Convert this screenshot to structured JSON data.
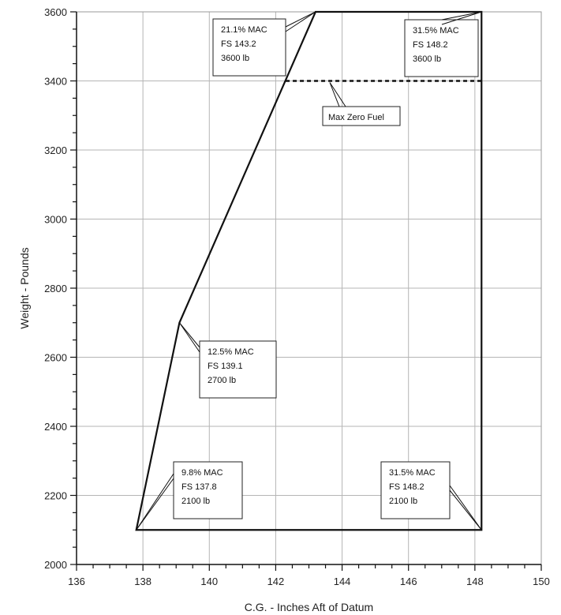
{
  "chart_data": {
    "type": "line",
    "xlabel": "C.G. - Inches Aft of Datum",
    "ylabel": "Weight - Pounds",
    "xlim": [
      136,
      150
    ],
    "ylim": [
      2000,
      3600
    ],
    "x_ticks": [
      136,
      138,
      140,
      142,
      144,
      146,
      148,
      150
    ],
    "x_tick_labels": [
      "136",
      "138",
      "140",
      "142",
      "144",
      "146",
      "148",
      "150"
    ],
    "y_ticks": [
      2000,
      2200,
      2400,
      2600,
      2800,
      3000,
      3200,
      3400,
      3600
    ],
    "y_tick_labels": [
      "2000",
      "2200",
      "2400",
      "2600",
      "2800",
      "3000",
      "3200",
      "3400",
      "3600"
    ],
    "grid": true,
    "envelope": [
      {
        "x": 137.8,
        "y": 2100
      },
      {
        "x": 139.1,
        "y": 2700
      },
      {
        "x": 143.2,
        "y": 3600
      },
      {
        "x": 148.2,
        "y": 3600
      },
      {
        "x": 148.2,
        "y": 2100
      }
    ],
    "max_zero_fuel": {
      "x_start": 142.3,
      "x_end": 148.2,
      "y": 3400,
      "label": "Max Zero Fuel"
    },
    "annotations": [
      {
        "name": "point-fwd-bottom",
        "x": 137.8,
        "y": 2100,
        "lines": [
          "9.8% MAC",
          "FS 137.8",
          "2100 lb"
        ]
      },
      {
        "name": "point-fwd-mid",
        "x": 139.1,
        "y": 2700,
        "lines": [
          "12.5% MAC",
          "FS 139.1",
          "2700 lb"
        ]
      },
      {
        "name": "point-fwd-top",
        "x": 143.2,
        "y": 3600,
        "lines": [
          "21.1% MAC",
          "FS 143.2",
          "3600 lb"
        ]
      },
      {
        "name": "point-aft-top",
        "x": 148.2,
        "y": 3600,
        "lines": [
          "31.5% MAC",
          "FS 148.2",
          "3600 lb"
        ]
      },
      {
        "name": "point-aft-bottom",
        "x": 148.2,
        "y": 2100,
        "lines": [
          "31.5% MAC",
          "FS 148.2",
          "2100 lb"
        ]
      }
    ]
  }
}
